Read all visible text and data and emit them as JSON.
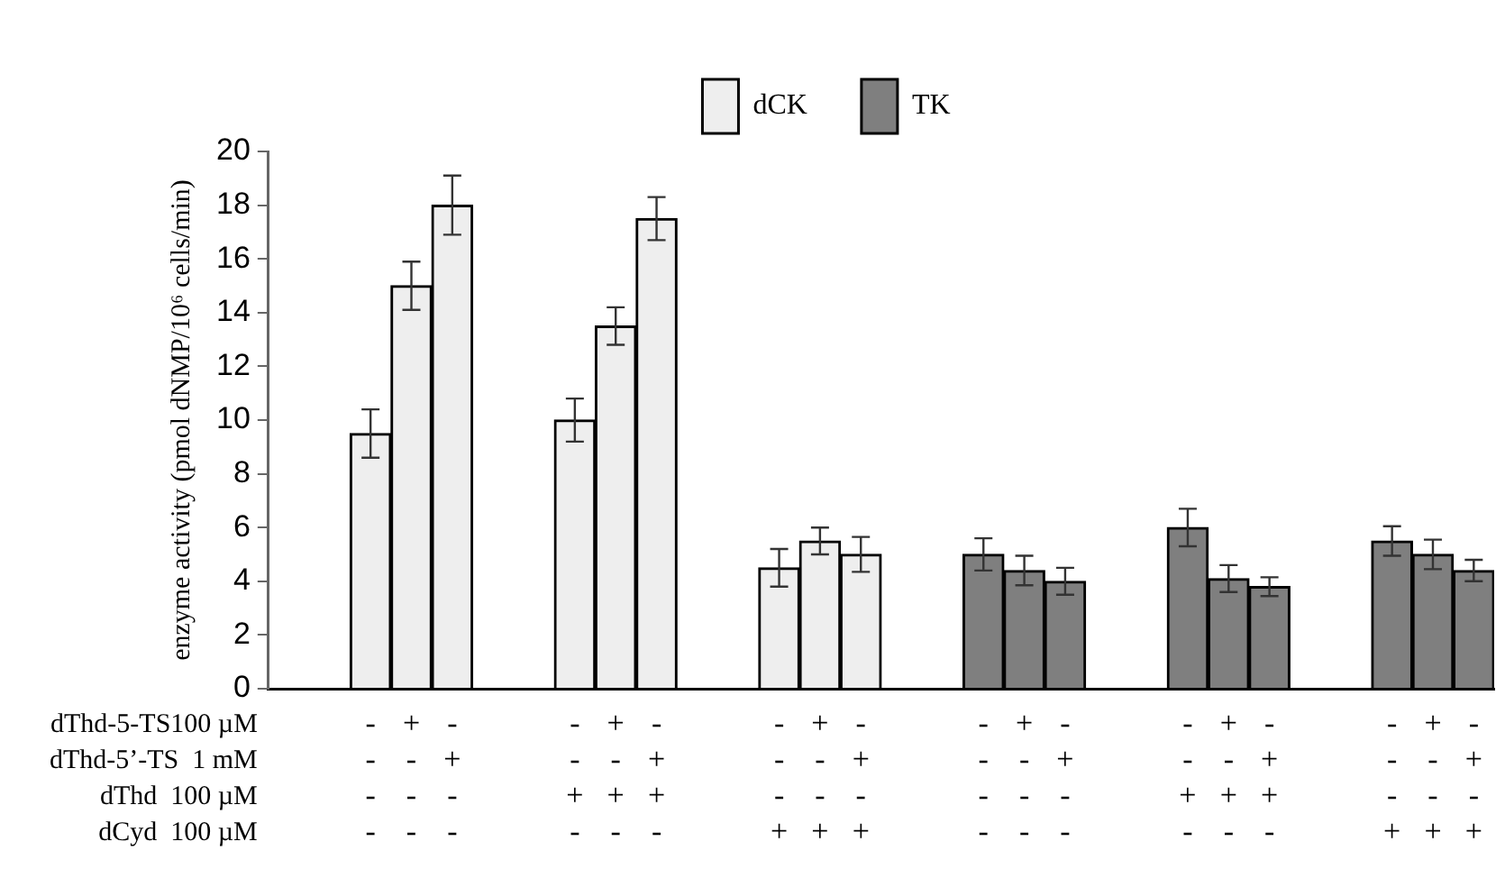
{
  "chart_data": {
    "type": "bar",
    "ylabel": "enzyme activity (pmol dNMP/10⁶ cells/min)",
    "categories": [
      null,
      null,
      "-\n-\n-\n-",
      "+\n-\n-\n-",
      "-\n+\n-\n-",
      null,
      null,
      "-\n-\n+\n-",
      "+\n-\n+\n-",
      "-\n+\n+\n-",
      null,
      null,
      "-\n-\n-\n+",
      "+\n-\n-\n+",
      "-\n+\n-\n+",
      null,
      null,
      "-\n-\n-\n-",
      "+\n-\n-\n-",
      "-\n+\n-\n-",
      null,
      null,
      "-\n-\n+\n-",
      "+\n-\n+\n-",
      "-\n+\n+\n-",
      null,
      null,
      "-\n-\n-\n+",
      "+\n-\n-\n+",
      "-\n+\n-\n+"
    ],
    "series": [
      {
        "name": "dCK",
        "color": "#eeeeee",
        "values": [
          null,
          null,
          9.5,
          15,
          18,
          null,
          null,
          10,
          13.5,
          17.5,
          null,
          null,
          4.5,
          5.5,
          5,
          null,
          null,
          null,
          null,
          null,
          null,
          null,
          null,
          null,
          null,
          null,
          null,
          null,
          null,
          null
        ],
        "errors": [
          null,
          null,
          0.9,
          0.9,
          1.1,
          null,
          null,
          0.8,
          0.7,
          0.8,
          null,
          null,
          0.7,
          0.5,
          0.65,
          null,
          null,
          null,
          null,
          null,
          null,
          null,
          null,
          null,
          null,
          null,
          null,
          null,
          null,
          null
        ]
      },
      {
        "name": "TK",
        "color": "#7f7f7f",
        "values": [
          null,
          null,
          null,
          null,
          null,
          null,
          null,
          null,
          null,
          null,
          null,
          null,
          null,
          null,
          null,
          null,
          null,
          5,
          4.4,
          4,
          null,
          null,
          6,
          4.1,
          3.8,
          null,
          null,
          5.5,
          5,
          4.4
        ],
        "errors": [
          null,
          null,
          null,
          null,
          null,
          null,
          null,
          null,
          null,
          null,
          null,
          null,
          null,
          null,
          null,
          null,
          null,
          0.6,
          0.55,
          0.5,
          null,
          null,
          0.7,
          0.5,
          0.35,
          null,
          null,
          0.55,
          0.55,
          0.4
        ]
      }
    ],
    "annotations": [
      "dThd-5-TS100 µM",
      "dThd-5’-TS  1 mM",
      "dThd  100 µM",
      "dCyd  100 µM"
    ],
    "ylim": [
      0,
      20
    ],
    "yticks": [
      0,
      2,
      4,
      6,
      8,
      10,
      12,
      14,
      16,
      18,
      20
    ],
    "grid": false,
    "legend": "top"
  }
}
